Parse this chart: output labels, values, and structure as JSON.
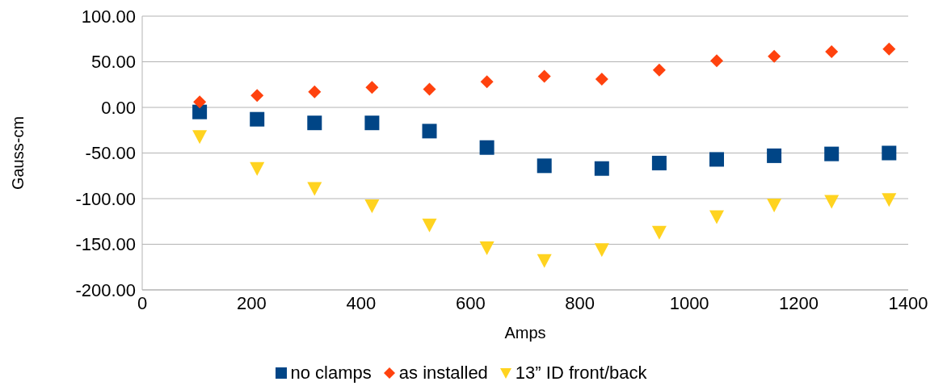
{
  "chart_data": {
    "type": "scatter",
    "xlabel": "Amps",
    "ylabel": "Gauss-cm",
    "x": [
      105,
      210,
      315,
      420,
      525,
      630,
      735,
      840,
      945,
      1050,
      1155,
      1260,
      1365
    ],
    "xlim": [
      0,
      1400
    ],
    "xticks": [
      0,
      200,
      400,
      600,
      800,
      1000,
      1200,
      1400
    ],
    "ylim": [
      -200,
      100
    ],
    "yticks": [
      {
        "value": -200,
        "label": "-200.00"
      },
      {
        "value": -150,
        "label": "-150.00"
      },
      {
        "value": -100,
        "label": "-100.00"
      },
      {
        "value": -50,
        "label": "-50.00"
      },
      {
        "value": 0,
        "label": "0.00"
      },
      {
        "value": 50,
        "label": "50.00"
      },
      {
        "value": 100,
        "label": "100.00"
      }
    ],
    "grid": "y",
    "legend": "bottom",
    "series": [
      {
        "name": "no clamps",
        "color": "#004586",
        "marker": "square",
        "values": [
          -5,
          -13,
          -17,
          -17,
          -26,
          -44,
          -64,
          -67,
          -61,
          -57,
          -53,
          -51,
          -50
        ]
      },
      {
        "name": "as installed",
        "color": "#ff420e",
        "marker": "diamond",
        "values": [
          6,
          13,
          17,
          22,
          20,
          28,
          34,
          31,
          41,
          51,
          56,
          61,
          64
        ]
      },
      {
        "name": "13” ID front/back",
        "color": "#ffd320",
        "marker": "triangle",
        "values": [
          -32,
          -67,
          -89,
          -108,
          -129,
          -154,
          -168,
          -156,
          -137,
          -120,
          -107,
          -103,
          -101
        ]
      }
    ]
  }
}
